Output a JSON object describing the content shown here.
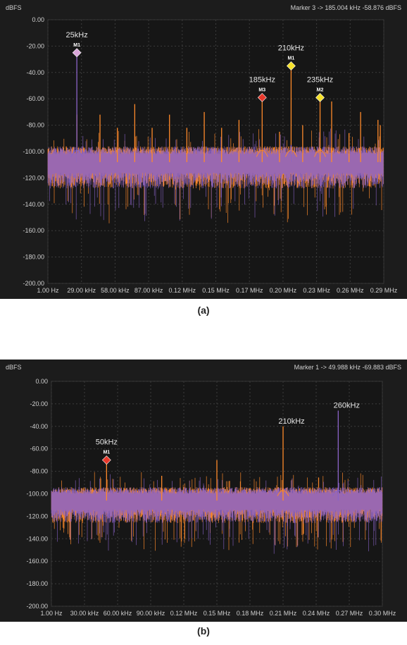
{
  "figures": [
    {
      "id": "a",
      "caption": "(a)",
      "unit_label": "dBFS",
      "marker_readout": "Marker 3 -> 185.004 kHz -58.876 dBFS",
      "y_ticks": [
        "0.00",
        "-20.00",
        "-40.00",
        "-60.00",
        "-80.00",
        "-100.00",
        "-120.00",
        "-140.00",
        "-160.00",
        "-180.00",
        "-200.00"
      ],
      "x_ticks": [
        "1.00 Hz",
        "29.00 kHz",
        "58.00 kHz",
        "87.00 kHz",
        "0.12 MHz",
        "0.15 MHz",
        "0.17 MHz",
        "0.20 MHz",
        "0.23 MHz",
        "0.26 MHz",
        "0.29 MHz"
      ],
      "markers": [
        {
          "tag": "M1",
          "label": "25kHz",
          "freq_khz": 25,
          "dbfs": -25,
          "color": "#d9a6d9"
        },
        {
          "tag": "M3",
          "label": "185kHz",
          "freq_khz": 185,
          "dbfs": -59,
          "color": "#e8382b"
        },
        {
          "tag": "M1",
          "label": "210kHz",
          "freq_khz": 210,
          "dbfs": -35,
          "color": "#f5e02a"
        },
        {
          "tag": "M2",
          "label": "235kHz",
          "freq_khz": 235,
          "dbfs": -59,
          "color": "#f5e02a"
        }
      ]
    },
    {
      "id": "b",
      "caption": "(b)",
      "unit_label": "dBFS",
      "marker_readout": "Marker 1 -> 49.988 kHz -69.883 dBFS",
      "y_ticks": [
        "0.00",
        "-20.00",
        "-40.00",
        "-60.00",
        "-80.00",
        "-100.00",
        "-120.00",
        "-140.00",
        "-160.00",
        "-180.00",
        "-200.00"
      ],
      "x_ticks": [
        "1.00 Hz",
        "30.00 kHz",
        "60.00 kHz",
        "90.00 kHz",
        "0.12 MHz",
        "0.15 MHz",
        "0.18 MHz",
        "0.21 MHz",
        "0.24 MHz",
        "0.27 MHz",
        "0.30 MHz"
      ],
      "markers": [
        {
          "tag": "M1",
          "label": "50kHz",
          "freq_khz": 50,
          "dbfs": -70,
          "color": "#e8382b"
        }
      ],
      "annotations": [
        {
          "label": "210kHz",
          "freq_khz": 210,
          "dbfs": -40
        },
        {
          "label": "260kHz",
          "freq_khz": 260,
          "dbfs": -26
        }
      ]
    }
  ],
  "chart_data": [
    {
      "type": "line",
      "ylabel": "dBFS",
      "ylim": [
        -200,
        0
      ],
      "xlim_khz": [
        0,
        290
      ],
      "grid": true,
      "series": [
        {
          "color": "#ff8a2a",
          "noise_floor_dbfs": -108,
          "spikes_khz_dbfs": [
            [
              25,
              -72
            ],
            [
              45,
              -72
            ],
            [
              60,
              -82
            ],
            [
              75,
              -64
            ],
            [
              90,
              -82
            ],
            [
              105,
              -72
            ],
            [
              120,
              -82
            ],
            [
              135,
              -70
            ],
            [
              150,
              -82
            ],
            [
              165,
              -76
            ],
            [
              185,
              -59
            ],
            [
              200,
              -85
            ],
            [
              210,
              -35
            ],
            [
              220,
              -80
            ],
            [
              235,
              -59
            ],
            [
              245,
              -62
            ],
            [
              260,
              -86
            ],
            [
              270,
              -70
            ],
            [
              285,
              -76
            ],
            [
              287,
              -80
            ]
          ]
        },
        {
          "color": "#8a63c8",
          "noise_floor_dbfs": -108,
          "spikes_khz_dbfs": [
            [
              25,
              -25
            ],
            [
              210,
              -95
            ]
          ]
        }
      ]
    },
    {
      "type": "line",
      "ylabel": "dBFS",
      "ylim": [
        -200,
        0
      ],
      "xlim_khz": [
        0,
        300
      ],
      "grid": true,
      "series": [
        {
          "color": "#ff8a2a",
          "noise_floor_dbfs": -106,
          "spikes_khz_dbfs": [
            [
              50,
              -70
            ],
            [
              100,
              -84
            ],
            [
              150,
              -70
            ],
            [
              210,
              -40
            ]
          ]
        },
        {
          "color": "#8a63c8",
          "noise_floor_dbfs": -106,
          "spikes_khz_dbfs": [
            [
              260,
              -26
            ]
          ]
        }
      ]
    }
  ]
}
